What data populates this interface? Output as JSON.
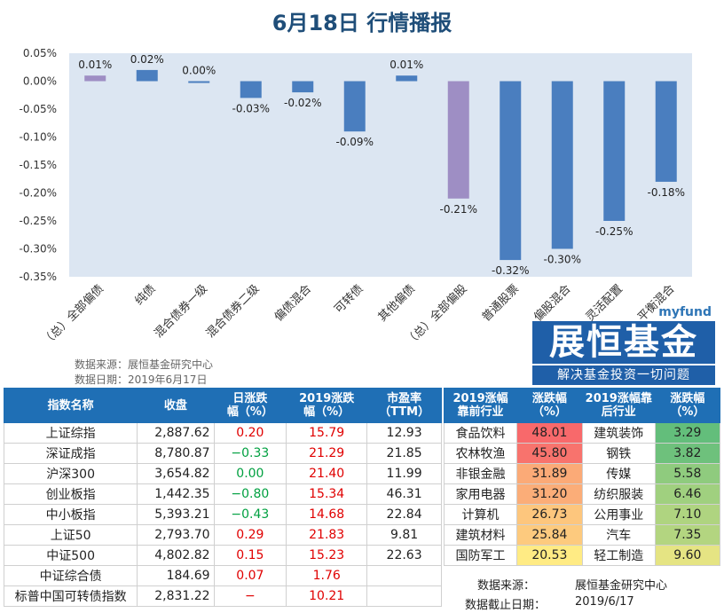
{
  "title": "6月18日  行情播报",
  "chart_data": {
    "type": "bar",
    "categories": [
      "（总）全部偏债",
      "纯债",
      "混合债券一级",
      "混合债券二级",
      "偏债混合",
      "可转债",
      "其他偏债",
      "（总）全部偏股",
      "普通股票",
      "偏股混合",
      "灵活配置",
      "平衡混合"
    ],
    "values": [
      0.01,
      0.02,
      0.0,
      -0.03,
      -0.02,
      -0.09,
      0.01,
      -0.21,
      -0.32,
      -0.3,
      -0.25,
      -0.18
    ],
    "data_labels": [
      "0.01%",
      "0.02%",
      "0.00%",
      "-0.03%",
      "-0.02%",
      "-0.09%",
      "0.01%",
      "-0.21%",
      "-0.32%",
      "-0.30%",
      "-0.25%",
      "-0.18%"
    ],
    "highlight": [
      true,
      false,
      false,
      false,
      false,
      false,
      false,
      true,
      false,
      false,
      false,
      false
    ],
    "ylim": [
      -0.35,
      0.05
    ],
    "yticks": [
      0.05,
      0.0,
      -0.05,
      -0.1,
      -0.15,
      -0.2,
      -0.25,
      -0.3,
      -0.35
    ],
    "ytick_labels": [
      "0.05%",
      "0.00%",
      "-0.05%",
      "-0.10%",
      "-0.15%",
      "-0.20%",
      "-0.25%",
      "-0.30%",
      "-0.35%"
    ],
    "colors": {
      "bar": "#4a7ebf",
      "highlight": "#9e8ec4",
      "plot_bg": "#dce6f2"
    },
    "grid": false
  },
  "source": {
    "line1": "数据来源：展恒基金研究中心",
    "line2": "数据日期：2019年6月17日"
  },
  "logo": {
    "brand_small": "myfund",
    "brand_big": "展恒基金",
    "slogan": "解决基金投资一切问题"
  },
  "left_table": {
    "headers": [
      "指数名称",
      "收盘",
      "日涨跌\n幅（%）",
      "2019涨跌\n幅（%）",
      "市盈率\n（TTM）"
    ],
    "rows": [
      {
        "name": "上证综指",
        "close": "2,887.62",
        "day": "0.20",
        "ytd": "15.79",
        "pe": "12.93"
      },
      {
        "name": "深证成指",
        "close": "8,780.87",
        "day": "−0.33",
        "ytd": "21.29",
        "pe": "21.85"
      },
      {
        "name": "沪深300",
        "close": "3,654.82",
        "day": "0.00",
        "ytd": "21.40",
        "pe": "11.99"
      },
      {
        "name": "创业板指",
        "close": "1,442.35",
        "day": "−0.80",
        "ytd": "15.34",
        "pe": "46.31"
      },
      {
        "name": "中小板指",
        "close": "5,393.21",
        "day": "−0.43",
        "ytd": "14.68",
        "pe": "22.84"
      },
      {
        "name": "上证50",
        "close": "2,793.70",
        "day": "0.29",
        "ytd": "21.83",
        "pe": "9.81"
      },
      {
        "name": "中证500",
        "close": "4,802.82",
        "day": "0.15",
        "ytd": "15.23",
        "pe": "22.63"
      },
      {
        "name": "中证综合债",
        "close": "184.69",
        "day": "0.07",
        "ytd": "1.76",
        "pe": ""
      },
      {
        "name": "标普中国可转债指数",
        "close": "2,831.22",
        "day": "−",
        "ytd": "10.21",
        "pe": ""
      }
    ],
    "colors": {
      "up": "#e00000",
      "down": "#00a040",
      "flat": "#00a040"
    }
  },
  "right_table": {
    "headers": [
      "2019涨幅\n靠前行业",
      "涨跌幅\n（%）",
      "2019涨幅靠\n后行业",
      "涨跌幅\n（%）"
    ],
    "rows": [
      {
        "top": "食品饮料",
        "top_val": "48.01",
        "bottom": "建筑装饰",
        "bottom_val": "3.29"
      },
      {
        "top": "农林牧渔",
        "top_val": "45.80",
        "bottom": "钢铁",
        "bottom_val": "3.82"
      },
      {
        "top": "非银金融",
        "top_val": "31.89",
        "bottom": "传媒",
        "bottom_val": "5.58"
      },
      {
        "top": "家用电器",
        "top_val": "31.20",
        "bottom": "纺织服装",
        "bottom_val": "6.46"
      },
      {
        "top": "计算机",
        "top_val": "26.73",
        "bottom": "公用事业",
        "bottom_val": "7.10"
      },
      {
        "top": "建筑材料",
        "top_val": "25.84",
        "bottom": "汽车",
        "bottom_val": "7.35"
      },
      {
        "top": "国防军工",
        "top_val": "20.53",
        "bottom": "轻工制造",
        "bottom_val": "9.60"
      }
    ],
    "top_colors": [
      "#f8696b",
      "#f8736d",
      "#fbaa77",
      "#fbad78",
      "#fdc67d",
      "#fdca7e",
      "#ffeb84"
    ],
    "bottom_colors": [
      "#63be7b",
      "#6ec17c",
      "#8fcb7e",
      "#a0d07f",
      "#afd480",
      "#b3d580",
      "#e5e483"
    ],
    "footer": {
      "src_label": "数据来源：",
      "src_value": "展恒基金研究中心",
      "date_label": "数据截止日期：",
      "date_value": "2019/6/17"
    }
  }
}
